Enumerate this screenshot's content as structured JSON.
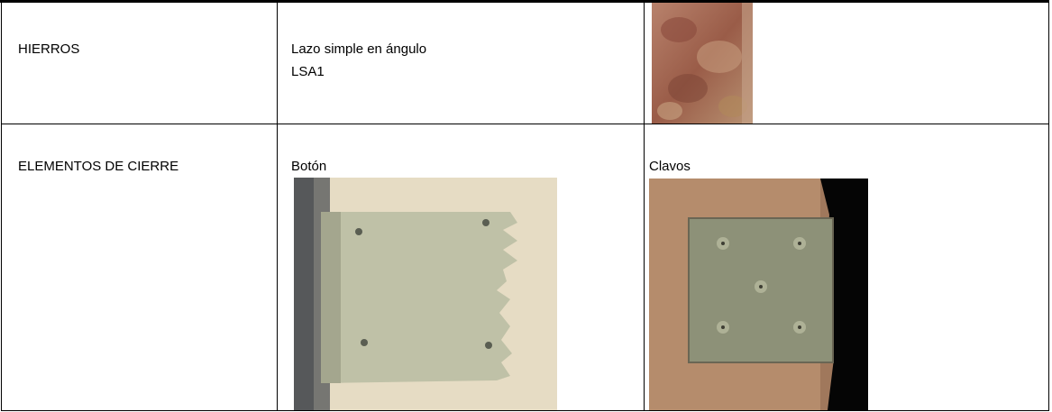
{
  "table": {
    "rows": [
      {
        "label": "HIERROS",
        "text": [
          "Lazo simple en ángulo",
          "LSA1"
        ]
      },
      {
        "label": "ELEMENTOS DE CIERRE",
        "captions": [
          "Botón",
          "Clavos"
        ]
      }
    ]
  }
}
